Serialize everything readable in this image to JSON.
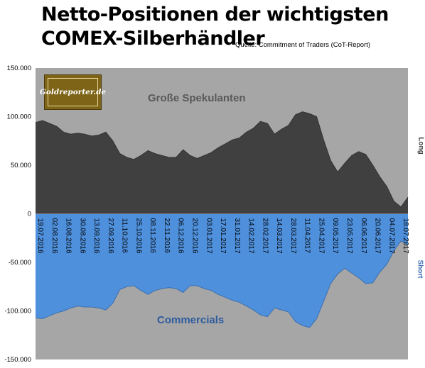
{
  "title_line1": "Netto-Positionen der wichtigsten",
  "title_line2": "COMEX-Silberhändler",
  "source": "Quelle: Commitment of Traders (CoT-Report)",
  "logo_text": "Goldreporter.de",
  "label_spekulanten": "Große Spekulanten",
  "label_commercials": "Commercials",
  "side_long": "Long",
  "side_short": "Short",
  "colors": {
    "spekulanten_fill": "#404040",
    "spekulanten_line": "#333333",
    "commercials_fill": "#4f90dc",
    "commercials_line": "#3b6fb0",
    "plot_background": "#a6a6a6",
    "logo_background": "#7e6417"
  },
  "chart_data": {
    "type": "area",
    "title": "",
    "xlabel": "",
    "ylabel": "",
    "ylim": [
      -150000,
      150000
    ],
    "yticks": [
      150000,
      100000,
      50000,
      0,
      -50000,
      -100000,
      -150000
    ],
    "ytick_labels": [
      "150.000",
      "100.000",
      "50.000",
      "0",
      "-50.000",
      "-100.000",
      "-150.000"
    ],
    "x_tick_labels": [
      "19.07.2016",
      "02.08.2016",
      "16.08.2016",
      "30.08.2016",
      "13.09.2016",
      "27.09.2016",
      "11.10.2016",
      "25.10.2016",
      "08.11.2016",
      "22.11.2016",
      "06.12.2016",
      "20.12.2016",
      "03.01.2017",
      "17.01.2017",
      "31.01.2017",
      "14.02.2017",
      "28.02.2017",
      "14.03.2017",
      "28.03.2017",
      "11.04.2017",
      "25.04.2017",
      "09.05.2017",
      "23.05.2017",
      "06.06.2017",
      "20.06.2017",
      "04.07.2017",
      "18.07.2017"
    ],
    "x": [
      "19.07.2016",
      "26.07.2016",
      "02.08.2016",
      "09.08.2016",
      "16.08.2016",
      "23.08.2016",
      "30.08.2016",
      "06.09.2016",
      "13.09.2016",
      "20.09.2016",
      "27.09.2016",
      "04.10.2016",
      "11.10.2016",
      "18.10.2016",
      "25.10.2016",
      "01.11.2016",
      "08.11.2016",
      "15.11.2016",
      "22.11.2016",
      "29.11.2016",
      "06.12.2016",
      "13.12.2016",
      "20.12.2016",
      "27.12.2016",
      "03.01.2017",
      "10.01.2017",
      "17.01.2017",
      "24.01.2017",
      "31.01.2017",
      "07.02.2017",
      "14.02.2017",
      "21.02.2017",
      "28.02.2017",
      "07.03.2017",
      "14.03.2017",
      "21.03.2017",
      "28.03.2017",
      "04.04.2017",
      "11.04.2017",
      "18.04.2017",
      "25.04.2017",
      "02.05.2017",
      "09.05.2017",
      "16.05.2017",
      "23.05.2017",
      "30.05.2017",
      "06.06.2017",
      "13.06.2017",
      "20.06.2017",
      "27.06.2017",
      "04.07.2017",
      "11.07.2017",
      "18.07.2017",
      "25.07.2017"
    ],
    "series": [
      {
        "name": "Große Spekulanten",
        "values": [
          94000,
          96000,
          93000,
          90000,
          84000,
          82000,
          83000,
          82000,
          80000,
          81000,
          84000,
          75000,
          62000,
          58000,
          56000,
          60000,
          65000,
          62000,
          60000,
          58000,
          58000,
          66000,
          60000,
          57000,
          60000,
          63000,
          68000,
          72000,
          76000,
          78000,
          84000,
          88000,
          95000,
          93000,
          82000,
          87000,
          91000,
          102000,
          105000,
          103000,
          100000,
          76000,
          55000,
          43000,
          52000,
          60000,
          64000,
          61000,
          50000,
          38000,
          28000,
          13000,
          7000,
          17000
        ]
      },
      {
        "name": "Commercials",
        "values": [
          -107000,
          -108000,
          -105000,
          -102000,
          -100000,
          -97000,
          -95000,
          -96000,
          -96000,
          -97000,
          -99000,
          -92000,
          -78000,
          -75000,
          -74000,
          -79000,
          -83000,
          -79000,
          -77000,
          -76000,
          -77000,
          -81000,
          -74000,
          -74000,
          -77000,
          -79000,
          -83000,
          -86000,
          -89000,
          -91000,
          -95000,
          -99000,
          -104000,
          -106000,
          -97000,
          -99000,
          -101000,
          -111000,
          -115000,
          -117000,
          -108000,
          -90000,
          -72000,
          -62000,
          -56000,
          -61000,
          -66000,
          -72000,
          -71000,
          -60000,
          -52000,
          -38000,
          -28000,
          -32000
        ]
      }
    ]
  }
}
